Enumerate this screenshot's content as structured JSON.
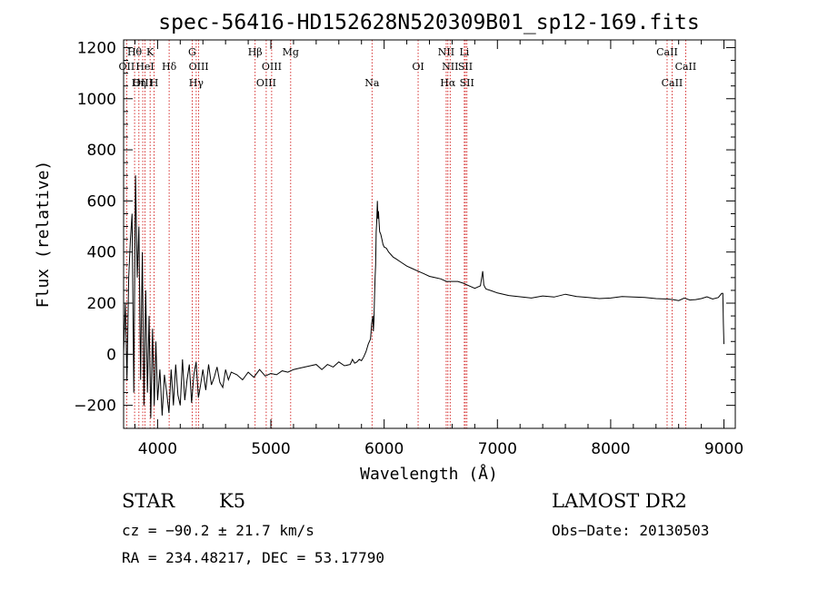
{
  "chart_data": {
    "type": "line",
    "title": "spec-56416-HD152628N520309B01_sp12-169.fits",
    "xlabel": "Wavelength (Å)",
    "ylabel": "Flux (relative)",
    "xlim": [
      3700,
      9100
    ],
    "ylim": [
      -290,
      1230
    ],
    "xticks": [
      4000,
      5000,
      6000,
      7000,
      8000,
      9000
    ],
    "yticks": [
      -200,
      0,
      200,
      400,
      600,
      800,
      1000,
      1200
    ],
    "line_color": "#000000",
    "marker_line_color": "#cc0000",
    "spectral_lines": [
      {
        "label": "Hθ",
        "wavelength": 3797,
        "row": 0
      },
      {
        "label": "OII",
        "wavelength": 3727,
        "row": 1
      },
      {
        "label": "OIII",
        "wavelength": 3869,
        "row": 2
      },
      {
        "label": "HeI",
        "wavelength": 3889,
        "row": 1
      },
      {
        "label": "K",
        "wavelength": 3934,
        "row": 0
      },
      {
        "label": "H",
        "wavelength": 3969,
        "row": 2
      },
      {
        "label": "Hη",
        "wavelength": 3835,
        "row": 2
      },
      {
        "label": "Hδ",
        "wavelength": 4102,
        "row": 1
      },
      {
        "label": "G",
        "wavelength": 4305,
        "row": 0
      },
      {
        "label": "OIII",
        "wavelength": 4363,
        "row": 1
      },
      {
        "label": "Hγ",
        "wavelength": 4341,
        "row": 2
      },
      {
        "label": "Hβ",
        "wavelength": 4861,
        "row": 0
      },
      {
        "label": "OIII",
        "wavelength": 4959,
        "row": 2
      },
      {
        "label": "OIII",
        "wavelength": 5007,
        "row": 1
      },
      {
        "label": "Mg",
        "wavelength": 5175,
        "row": 0
      },
      {
        "label": "Na",
        "wavelength": 5893,
        "row": 2
      },
      {
        "label": "OI",
        "wavelength": 6300,
        "row": 1
      },
      {
        "label": "NII",
        "wavelength": 6548,
        "row": 0
      },
      {
        "label": "Hα",
        "wavelength": 6563,
        "row": 2
      },
      {
        "label": "NII",
        "wavelength": 6583,
        "row": 1
      },
      {
        "label": "Li",
        "wavelength": 6708,
        "row": 0
      },
      {
        "label": "SII",
        "wavelength": 6717,
        "row": 1
      },
      {
        "label": "SII",
        "wavelength": 6731,
        "row": 2
      },
      {
        "label": "CaII",
        "wavelength": 8498,
        "row": 0
      },
      {
        "label": "CaII",
        "wavelength": 8542,
        "row": 2
      },
      {
        "label": "CaII",
        "wavelength": 8662,
        "row": 1
      }
    ],
    "series": [
      {
        "x": [
          3700,
          3715,
          3730,
          3745,
          3760,
          3775,
          3790,
          3805,
          3820,
          3835,
          3850,
          3865,
          3880,
          3895,
          3910,
          3925,
          3940,
          3955,
          3970,
          3985,
          4000,
          4020,
          4040,
          4060,
          4080,
          4100,
          4120,
          4140,
          4160,
          4180,
          4200,
          4220,
          4240,
          4260,
          4280,
          4300,
          4320,
          4340,
          4360,
          4380,
          4400,
          4425,
          4450,
          4475,
          4500,
          4525,
          4550,
          4575,
          4600,
          4625,
          4650,
          4700,
          4750,
          4800,
          4850,
          4900,
          4950,
          5000,
          5050,
          5100,
          5150,
          5200,
          5250,
          5300,
          5350,
          5400,
          5450,
          5500,
          5550,
          5600,
          5650,
          5700,
          5720,
          5740,
          5760,
          5780,
          5800,
          5820,
          5840,
          5860,
          5880,
          5890,
          5900,
          5905,
          5910,
          5915,
          5920,
          5925,
          5930,
          5935,
          5940,
          5945,
          5950,
          5955,
          5960,
          5970,
          5980,
          5990,
          6000,
          6020,
          6040,
          6060,
          6080,
          6100,
          6150,
          6200,
          6250,
          6300,
          6350,
          6400,
          6450,
          6500,
          6550,
          6600,
          6650,
          6700,
          6750,
          6800,
          6850,
          6870,
          6880,
          6890,
          6900,
          6950,
          7000,
          7100,
          7200,
          7300,
          7400,
          7500,
          7600,
          7700,
          7800,
          7900,
          8000,
          8100,
          8200,
          8300,
          8400,
          8500,
          8550,
          8600,
          8650,
          8700,
          8750,
          8800,
          8850,
          8900,
          8950,
          8980,
          8990,
          8995,
          9000
        ],
        "y": [
          0,
          200,
          -100,
          300,
          450,
          550,
          -150,
          700,
          300,
          500,
          -100,
          400,
          -200,
          250,
          -150,
          150,
          -250,
          100,
          -200,
          50,
          -180,
          -60,
          -240,
          -80,
          -150,
          -230,
          -60,
          -200,
          -40,
          -160,
          -200,
          -20,
          -180,
          -100,
          -40,
          -190,
          -80,
          -30,
          -170,
          -120,
          -60,
          -140,
          -40,
          -120,
          -90,
          -50,
          -110,
          -130,
          -60,
          -100,
          -70,
          -80,
          -100,
          -70,
          -90,
          -60,
          -85,
          -75,
          -80,
          -65,
          -70,
          -60,
          -55,
          -50,
          -45,
          -40,
          -60,
          -40,
          -50,
          -30,
          -45,
          -40,
          -20,
          -35,
          -30,
          -20,
          -25,
          -10,
          10,
          40,
          60,
          120,
          150,
          90,
          130,
          230,
          300,
          350,
          480,
          520,
          600,
          530,
          560,
          520,
          480,
          470,
          450,
          430,
          420,
          415,
          400,
          390,
          380,
          375,
          360,
          345,
          335,
          325,
          315,
          305,
          300,
          295,
          285,
          285,
          285,
          278,
          268,
          258,
          268,
          325,
          272,
          262,
          255,
          248,
          240,
          230,
          225,
          220,
          228,
          224,
          235,
          226,
          222,
          218,
          220,
          226,
          224,
          222,
          218,
          216,
          214,
          210,
          220,
          212,
          214,
          218,
          225,
          216,
          222,
          238,
          238,
          120,
          40
        ]
      }
    ]
  },
  "info": {
    "class": "STAR",
    "subclass": "K5",
    "survey": "LAMOST DR2",
    "redshift": "cz = −90.2 ± 21.7 km/s",
    "obsdate": "Obs−Date: 20130503",
    "coords": "RA = 234.48217, DEC =  53.17790"
  }
}
